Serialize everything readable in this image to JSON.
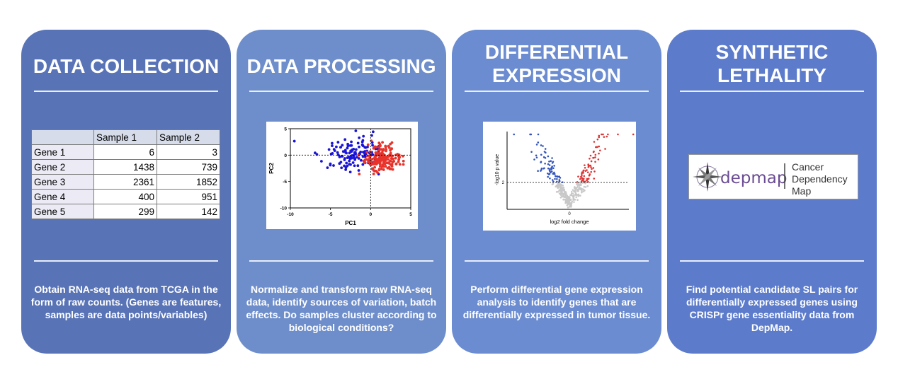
{
  "cards": [
    {
      "title_lines": [
        "DATA COLLECTION"
      ],
      "description": "Obtain RNA-seq data from TCGA in the form of raw counts. (Genes are features, samples are data points/variables)",
      "table": {
        "headers": [
          "",
          "Sample 1",
          "Sample 2"
        ],
        "rows": [
          [
            "Gene 1",
            "6",
            "3"
          ],
          [
            "Gene 2",
            "1438",
            "739"
          ],
          [
            "Gene 3",
            "2361",
            "1852"
          ],
          [
            "Gene 4",
            "400",
            "951"
          ],
          [
            "Gene 5",
            "299",
            "142"
          ]
        ]
      },
      "color": "#5873b6"
    },
    {
      "title_lines": [
        "DATA PROCESSING"
      ],
      "description": "Normalize and transform raw RNA-seq data, identify sources of variation, batch effects. Do samples cluster according to biological conditions?",
      "color": "#6e8ecb"
    },
    {
      "title_lines": [
        "DIFFERENTIAL",
        "EXPRESSION"
      ],
      "description": "Perform differential gene expression analysis to identify genes that are differentially expressed in tumor tissue.",
      "color": "#6b8cd0"
    },
    {
      "title_lines": [
        "SYNTHETIC",
        "LETHALITY"
      ],
      "description": "Find potential candidate SL pairs for differentially expressed genes using CRISPr gene essentiality data from DepMap.",
      "color": "#5c7bcb"
    }
  ],
  "pca_plot": {
    "xlabel": "PC1",
    "ylabel": "PC2",
    "x_ticks": [
      "-10",
      "-5",
      "0",
      "5"
    ],
    "y_ticks": [
      "5",
      "0",
      "-5",
      "-10"
    ],
    "xlim": [
      -10,
      5
    ],
    "ylim": [
      -10,
      5
    ],
    "series_colors": {
      "group_a": "#1a14d6",
      "group_b": "#e8332a"
    }
  },
  "volcano_plot": {
    "xlabel": "log2 fold change",
    "ylabel": "-log10 p value",
    "x_tick": "0",
    "y_tick": "2",
    "colors": {
      "down": "#3355bb",
      "up": "#dd3333",
      "ns": "#c8c8c8"
    }
  },
  "depmap_logo": {
    "wordmark": "depmap",
    "tagline": [
      "Cancer",
      "Dependency",
      "Map"
    ]
  }
}
